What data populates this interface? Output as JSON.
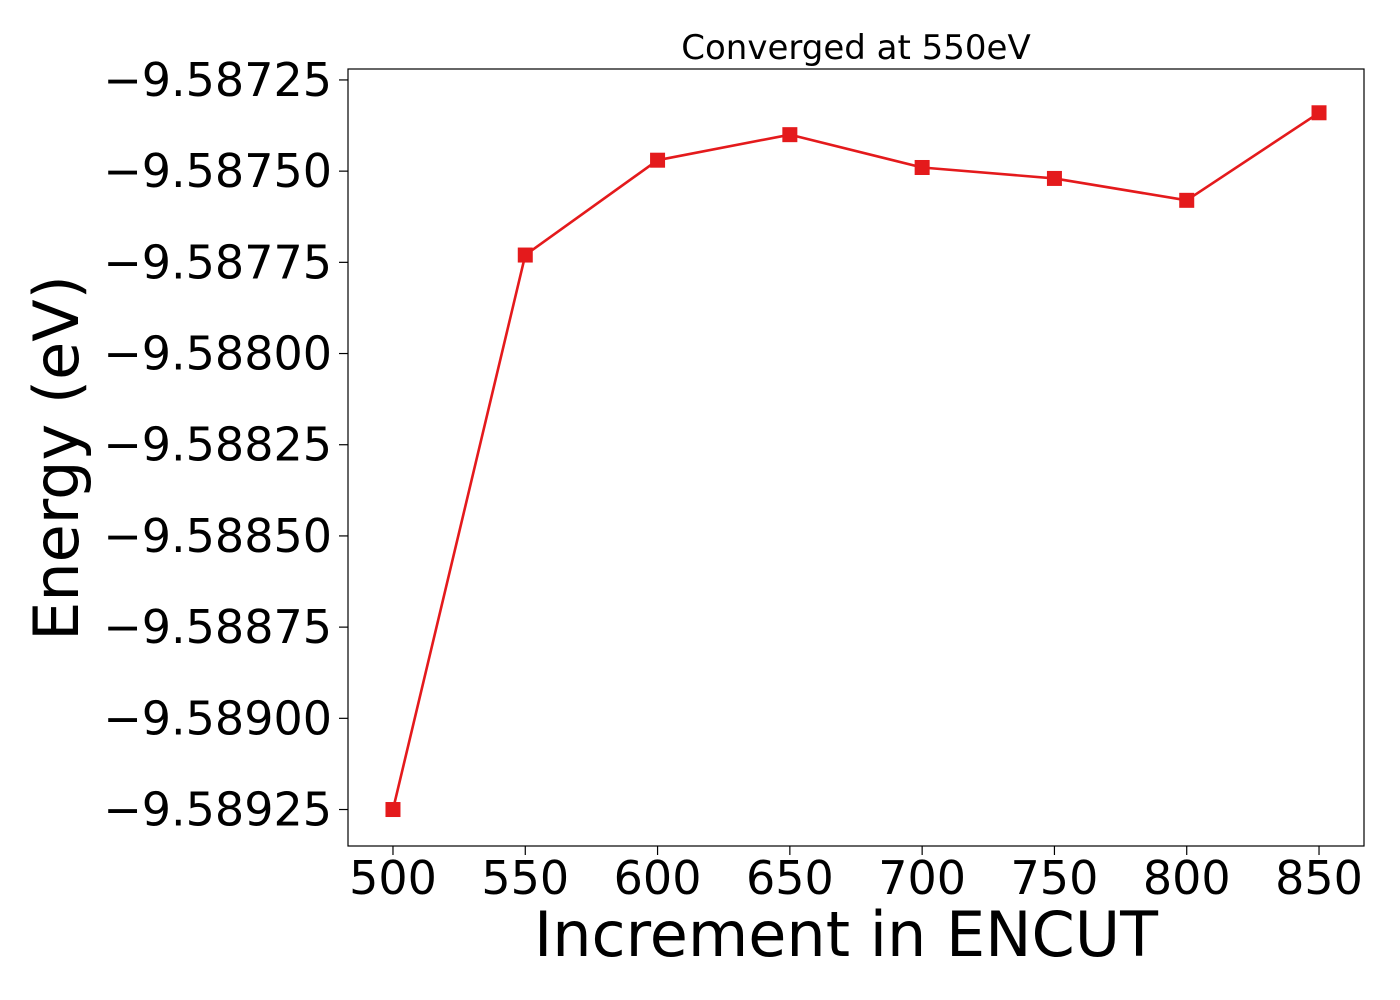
{
  "chart_data": {
    "type": "line",
    "title": "Converged at 550eV",
    "xlabel": "Increment in ENCUT",
    "ylabel": "Energy (eV)",
    "x": [
      500,
      550,
      600,
      650,
      700,
      750,
      800,
      850
    ],
    "series": [
      {
        "values": [
          -9.58925,
          -9.58773,
          -9.58747,
          -9.5874,
          -9.58749,
          -9.58752,
          -9.58758,
          -9.58734
        ],
        "color": "#e41a1c",
        "marker": "square"
      }
    ],
    "x_ticks": [
      500,
      550,
      600,
      650,
      700,
      750,
      800,
      850
    ],
    "x_tick_labels": [
      "500",
      "550",
      "600",
      "650",
      "700",
      "750",
      "800",
      "850"
    ],
    "y_ticks": [
      -9.58925,
      -9.589,
      -9.58875,
      -9.5885,
      -9.58825,
      -9.588,
      -9.58775,
      -9.5875,
      -9.58725
    ],
    "y_tick_labels": [
      "−9.58925",
      "−9.58900",
      "−9.58875",
      "−9.58850",
      "−9.58825",
      "−9.58800",
      "−9.58775",
      "−9.58750",
      "−9.58725"
    ],
    "xlim": [
      483,
      867
    ],
    "ylim": [
      -9.58935,
      -9.58722
    ],
    "grid": false,
    "legend": "none"
  }
}
